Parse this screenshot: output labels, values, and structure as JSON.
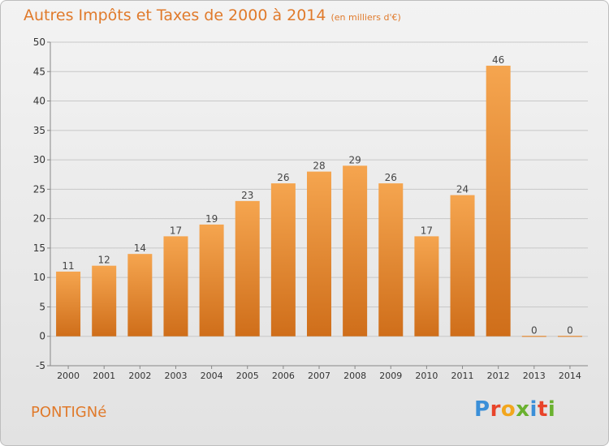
{
  "header": {
    "title": "Autres Impôts et Taxes de 2000 à 2014",
    "subtitle": "(en milliers d'€)"
  },
  "location": {
    "name": "PONTIGNé"
  },
  "brand": {
    "logo_text": "Proxiti",
    "letter_colors": [
      "#3b8fd8",
      "#e8442a",
      "#f2a61d",
      "#6ab12f",
      "#3b8fd8",
      "#e8442a",
      "#6ab12f"
    ]
  },
  "colors": {
    "bar_top": "#f5a54f",
    "bar_bottom": "#cf6e1a",
    "title": "#e07a2b"
  },
  "chart_data": {
    "type": "bar",
    "categories": [
      "2000",
      "2001",
      "2002",
      "2003",
      "2004",
      "2005",
      "2006",
      "2007",
      "2008",
      "2009",
      "2010",
      "2011",
      "2012",
      "2013",
      "2014"
    ],
    "values": [
      11,
      12,
      14,
      17,
      19,
      23,
      26,
      28,
      29,
      26,
      17,
      24,
      46,
      0,
      0
    ],
    "data_labels": [
      "11",
      "12",
      "14",
      "17",
      "19",
      "23",
      "26",
      "28",
      "29",
      "26",
      "17",
      "24",
      "46",
      "0",
      "0"
    ],
    "ylim": [
      -5,
      50
    ],
    "yticks": [
      -5,
      0,
      5,
      10,
      15,
      20,
      25,
      30,
      35,
      40,
      45,
      50
    ],
    "grid": true
  }
}
